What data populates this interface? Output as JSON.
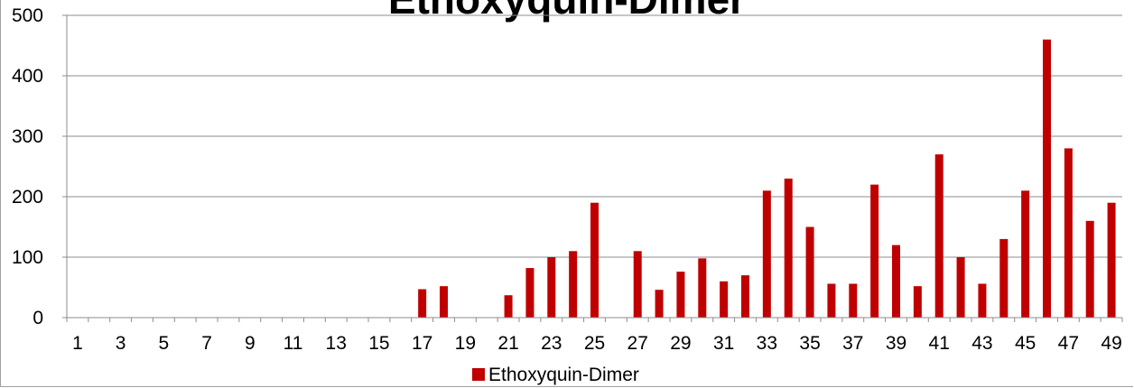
{
  "chart_data": {
    "type": "bar",
    "title": "Ethoxyquin-Dimer",
    "xlabel": "",
    "ylabel": "",
    "ylim": [
      0,
      500
    ],
    "yticks": [
      0,
      100,
      200,
      300,
      400,
      500
    ],
    "grid": true,
    "legend_position": "bottom",
    "categories": [
      1,
      2,
      3,
      4,
      5,
      6,
      7,
      8,
      9,
      10,
      11,
      12,
      13,
      14,
      15,
      16,
      17,
      18,
      19,
      20,
      21,
      22,
      23,
      24,
      25,
      26,
      27,
      28,
      29,
      30,
      31,
      32,
      33,
      34,
      35,
      36,
      37,
      38,
      39,
      40,
      41,
      42,
      43,
      44,
      45,
      46,
      47,
      48,
      49
    ],
    "xtick_labels": [
      "1",
      "3",
      "5",
      "7",
      "9",
      "11",
      "13",
      "15",
      "17",
      "19",
      "21",
      "23",
      "25",
      "27",
      "29",
      "31",
      "33",
      "35",
      "37",
      "39",
      "41",
      "43",
      "45",
      "47",
      "49"
    ],
    "series": [
      {
        "name": "Ethoxyquin-Dimer",
        "color": "#c00000",
        "values": [
          0,
          0,
          0,
          0,
          0,
          0,
          0,
          0,
          0,
          0,
          0,
          0,
          0,
          0,
          0,
          0,
          47,
          52,
          0,
          0,
          37,
          82,
          100,
          110,
          190,
          0,
          110,
          46,
          76,
          98,
          60,
          70,
          210,
          230,
          150,
          56,
          56,
          220,
          120,
          52,
          270,
          100,
          56,
          130,
          210,
          460,
          280,
          160,
          190
        ]
      }
    ]
  }
}
